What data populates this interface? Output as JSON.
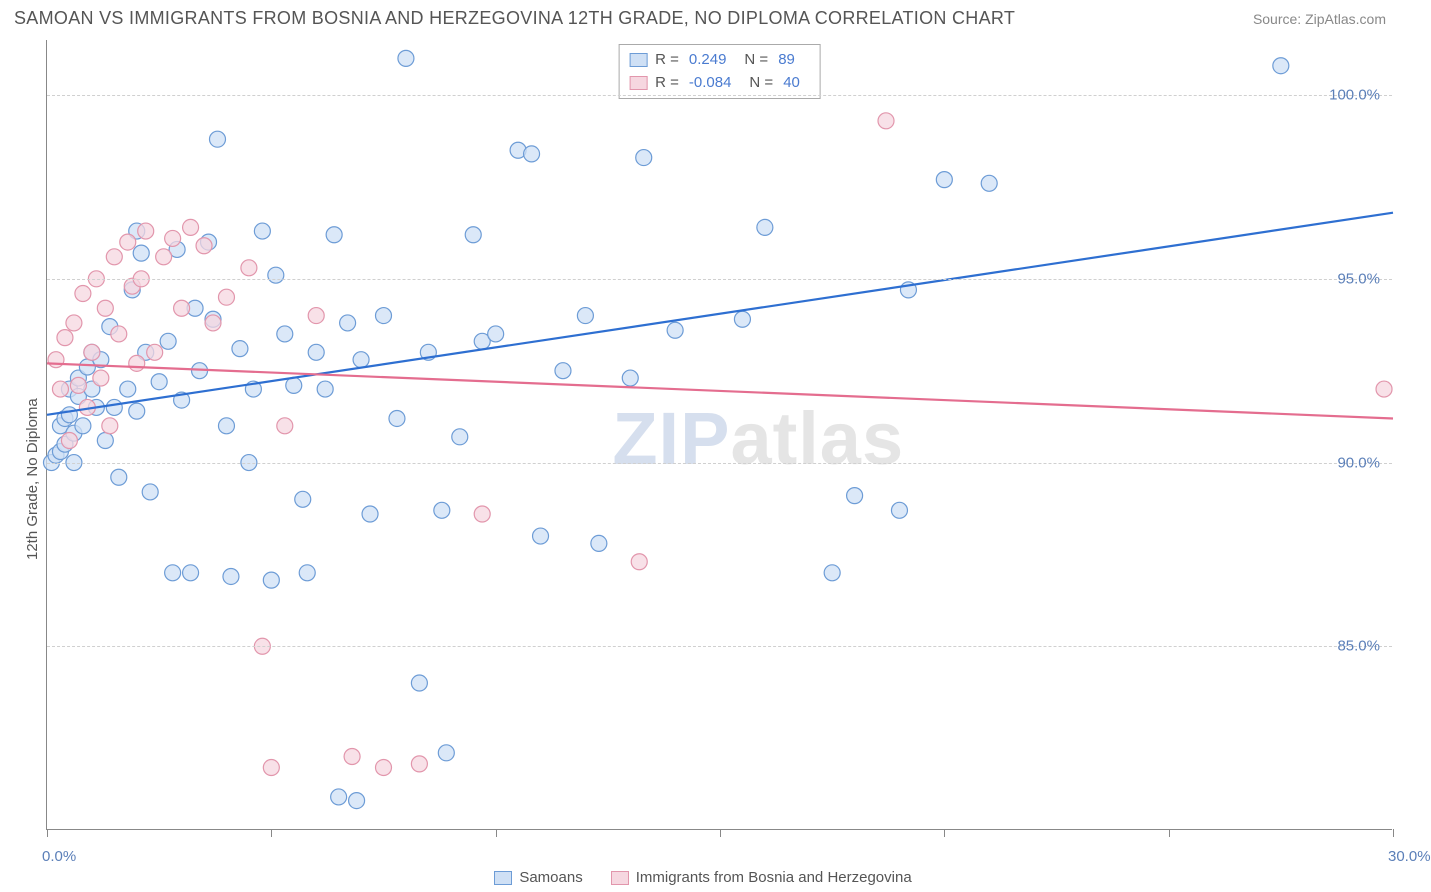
{
  "title": "SAMOAN VS IMMIGRANTS FROM BOSNIA AND HERZEGOVINA 12TH GRADE, NO DIPLOMA CORRELATION CHART",
  "source": "Source: ZipAtlas.com",
  "ylabel": "12th Grade, No Diploma",
  "watermark_z": "ZIP",
  "watermark_rest": "atlas",
  "chart": {
    "type": "scatter",
    "xlim": [
      0,
      30
    ],
    "ylim": [
      80,
      101.5
    ],
    "xtick_positions": [
      0,
      5,
      10,
      15,
      20,
      25,
      30
    ],
    "xtick_labels": [
      "0.0%",
      "",
      "",
      "",
      "",
      "",
      "30.0%"
    ],
    "ytick_positions": [
      85,
      90,
      95,
      100
    ],
    "ytick_labels": [
      "85.0%",
      "90.0%",
      "95.0%",
      "100.0%"
    ],
    "grid_color": "#d8d8d8",
    "axis_color": "#888888",
    "background_color": "#ffffff",
    "marker_radius": 8,
    "marker_stroke_width": 1.2,
    "line_width": 2.2,
    "series": [
      {
        "name": "Samoans",
        "fill": "#cfe0f5",
        "stroke": "#6d9cd6",
        "line_color": "#2e6fd1",
        "R": "0.249",
        "N": "89",
        "trend": {
          "x1": 0,
          "y1": 91.3,
          "x2": 30,
          "y2": 96.8
        },
        "points": [
          [
            0.1,
            90.0
          ],
          [
            0.2,
            90.2
          ],
          [
            0.3,
            91.0
          ],
          [
            0.3,
            90.3
          ],
          [
            0.4,
            90.5
          ],
          [
            0.4,
            91.2
          ],
          [
            0.5,
            91.3
          ],
          [
            0.5,
            92.0
          ],
          [
            0.6,
            90.8
          ],
          [
            0.6,
            90.0
          ],
          [
            0.7,
            91.8
          ],
          [
            0.7,
            92.3
          ],
          [
            0.8,
            91.0
          ],
          [
            0.9,
            92.6
          ],
          [
            1.0,
            92.0
          ],
          [
            1.0,
            93.0
          ],
          [
            1.1,
            91.5
          ],
          [
            1.2,
            92.8
          ],
          [
            1.3,
            90.6
          ],
          [
            1.4,
            93.7
          ],
          [
            1.5,
            91.5
          ],
          [
            1.6,
            89.6
          ],
          [
            1.8,
            92.0
          ],
          [
            1.9,
            94.7
          ],
          [
            2.0,
            96.3
          ],
          [
            2.0,
            91.4
          ],
          [
            2.1,
            95.7
          ],
          [
            2.2,
            93.0
          ],
          [
            2.3,
            89.2
          ],
          [
            2.5,
            92.2
          ],
          [
            2.7,
            93.3
          ],
          [
            2.8,
            87.0
          ],
          [
            2.9,
            95.8
          ],
          [
            3.0,
            91.7
          ],
          [
            3.2,
            87.0
          ],
          [
            3.3,
            94.2
          ],
          [
            3.4,
            92.5
          ],
          [
            3.6,
            96.0
          ],
          [
            3.7,
            93.9
          ],
          [
            3.8,
            98.8
          ],
          [
            4.0,
            91.0
          ],
          [
            4.1,
            86.9
          ],
          [
            4.3,
            93.1
          ],
          [
            4.5,
            90.0
          ],
          [
            4.6,
            92.0
          ],
          [
            4.8,
            96.3
          ],
          [
            5.0,
            86.8
          ],
          [
            5.1,
            95.1
          ],
          [
            5.3,
            93.5
          ],
          [
            5.5,
            92.1
          ],
          [
            5.7,
            89.0
          ],
          [
            5.8,
            87.0
          ],
          [
            6.0,
            93.0
          ],
          [
            6.2,
            92.0
          ],
          [
            6.4,
            96.2
          ],
          [
            6.5,
            80.9
          ],
          [
            6.7,
            93.8
          ],
          [
            6.9,
            80.8
          ],
          [
            7.0,
            92.8
          ],
          [
            7.2,
            88.6
          ],
          [
            7.5,
            94.0
          ],
          [
            7.8,
            91.2
          ],
          [
            8.0,
            101.0
          ],
          [
            8.3,
            84.0
          ],
          [
            8.5,
            93.0
          ],
          [
            8.8,
            88.7
          ],
          [
            8.9,
            82.1
          ],
          [
            9.2,
            90.7
          ],
          [
            9.5,
            96.2
          ],
          [
            9.7,
            93.3
          ],
          [
            10.0,
            93.5
          ],
          [
            10.5,
            98.5
          ],
          [
            10.8,
            98.4
          ],
          [
            11.0,
            88.0
          ],
          [
            11.5,
            92.5
          ],
          [
            12.0,
            94.0
          ],
          [
            12.3,
            87.8
          ],
          [
            13.0,
            92.3
          ],
          [
            13.3,
            98.3
          ],
          [
            14.0,
            93.6
          ],
          [
            15.5,
            93.9
          ],
          [
            16.0,
            96.4
          ],
          [
            17.5,
            87.0
          ],
          [
            18.0,
            89.1
          ],
          [
            19.0,
            88.7
          ],
          [
            19.2,
            94.7
          ],
          [
            20.0,
            97.7
          ],
          [
            21.0,
            97.6
          ],
          [
            27.5,
            100.8
          ]
        ]
      },
      {
        "name": "Immigrants from Bosnia and Herzegovina",
        "fill": "#f6d7e0",
        "stroke": "#e296ac",
        "line_color": "#e46d8f",
        "R": "-0.084",
        "N": "40",
        "trend": {
          "x1": 0,
          "y1": 92.7,
          "x2": 30,
          "y2": 91.2
        },
        "points": [
          [
            0.2,
            92.8
          ],
          [
            0.3,
            92.0
          ],
          [
            0.4,
            93.4
          ],
          [
            0.5,
            90.6
          ],
          [
            0.6,
            93.8
          ],
          [
            0.7,
            92.1
          ],
          [
            0.8,
            94.6
          ],
          [
            0.9,
            91.5
          ],
          [
            1.0,
            93.0
          ],
          [
            1.1,
            95.0
          ],
          [
            1.2,
            92.3
          ],
          [
            1.3,
            94.2
          ],
          [
            1.4,
            91.0
          ],
          [
            1.5,
            95.6
          ],
          [
            1.6,
            93.5
          ],
          [
            1.8,
            96.0
          ],
          [
            1.9,
            94.8
          ],
          [
            2.0,
            92.7
          ],
          [
            2.1,
            95.0
          ],
          [
            2.2,
            96.3
          ],
          [
            2.4,
            93.0
          ],
          [
            2.6,
            95.6
          ],
          [
            2.8,
            96.1
          ],
          [
            3.0,
            94.2
          ],
          [
            3.2,
            96.4
          ],
          [
            3.5,
            95.9
          ],
          [
            3.7,
            93.8
          ],
          [
            4.0,
            94.5
          ],
          [
            4.5,
            95.3
          ],
          [
            4.8,
            85.0
          ],
          [
            5.0,
            81.7
          ],
          [
            5.3,
            91.0
          ],
          [
            6.0,
            94.0
          ],
          [
            6.8,
            82.0
          ],
          [
            7.5,
            81.7
          ],
          [
            8.3,
            81.8
          ],
          [
            9.7,
            88.6
          ],
          [
            13.2,
            87.3
          ],
          [
            18.7,
            99.3
          ],
          [
            29.8,
            92.0
          ]
        ]
      }
    ]
  },
  "legend_bottom": [
    {
      "label": "Samoans",
      "fill": "#cfe0f5",
      "stroke": "#6d9cd6"
    },
    {
      "label": "Immigrants from Bosnia and Herzegovina",
      "fill": "#f6d7e0",
      "stroke": "#e296ac"
    }
  ]
}
